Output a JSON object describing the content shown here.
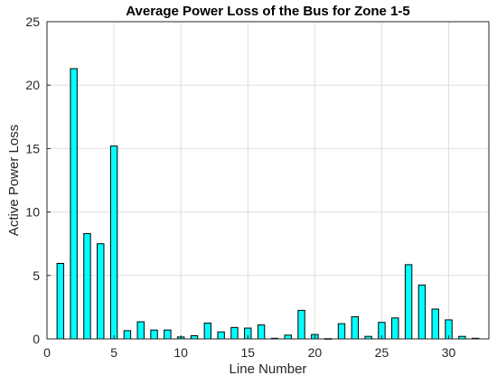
{
  "chart_data": {
    "type": "bar",
    "title": "Average Power Loss of the Bus for Zone 1-5",
    "xlabel": "Line Number",
    "ylabel": "Active Power Loss",
    "xlim": [
      0,
      33
    ],
    "ylim": [
      0,
      25
    ],
    "xticks": [
      "0",
      "5",
      "10",
      "15",
      "20",
      "25",
      "30"
    ],
    "yticks": [
      "0",
      "5",
      "10",
      "15",
      "20",
      "25"
    ],
    "grid": true,
    "categories": [
      1,
      2,
      3,
      4,
      5,
      6,
      7,
      8,
      9,
      10,
      11,
      12,
      13,
      14,
      15,
      16,
      17,
      18,
      19,
      20,
      21,
      22,
      23,
      24,
      25,
      26,
      27,
      28,
      29,
      30,
      31,
      32
    ],
    "values": [
      5.95,
      21.3,
      8.3,
      7.5,
      15.2,
      0.65,
      1.35,
      0.7,
      0.7,
      0.15,
      0.25,
      1.25,
      0.55,
      0.9,
      0.85,
      1.1,
      0.05,
      0.3,
      2.25,
      0.35,
      0.02,
      1.2,
      1.75,
      0.2,
      1.3,
      1.65,
      5.85,
      4.25,
      2.35,
      1.5,
      0.2,
      0.05
    ],
    "bar_color": "#00ffff",
    "bar_edge_color": "#000000"
  }
}
